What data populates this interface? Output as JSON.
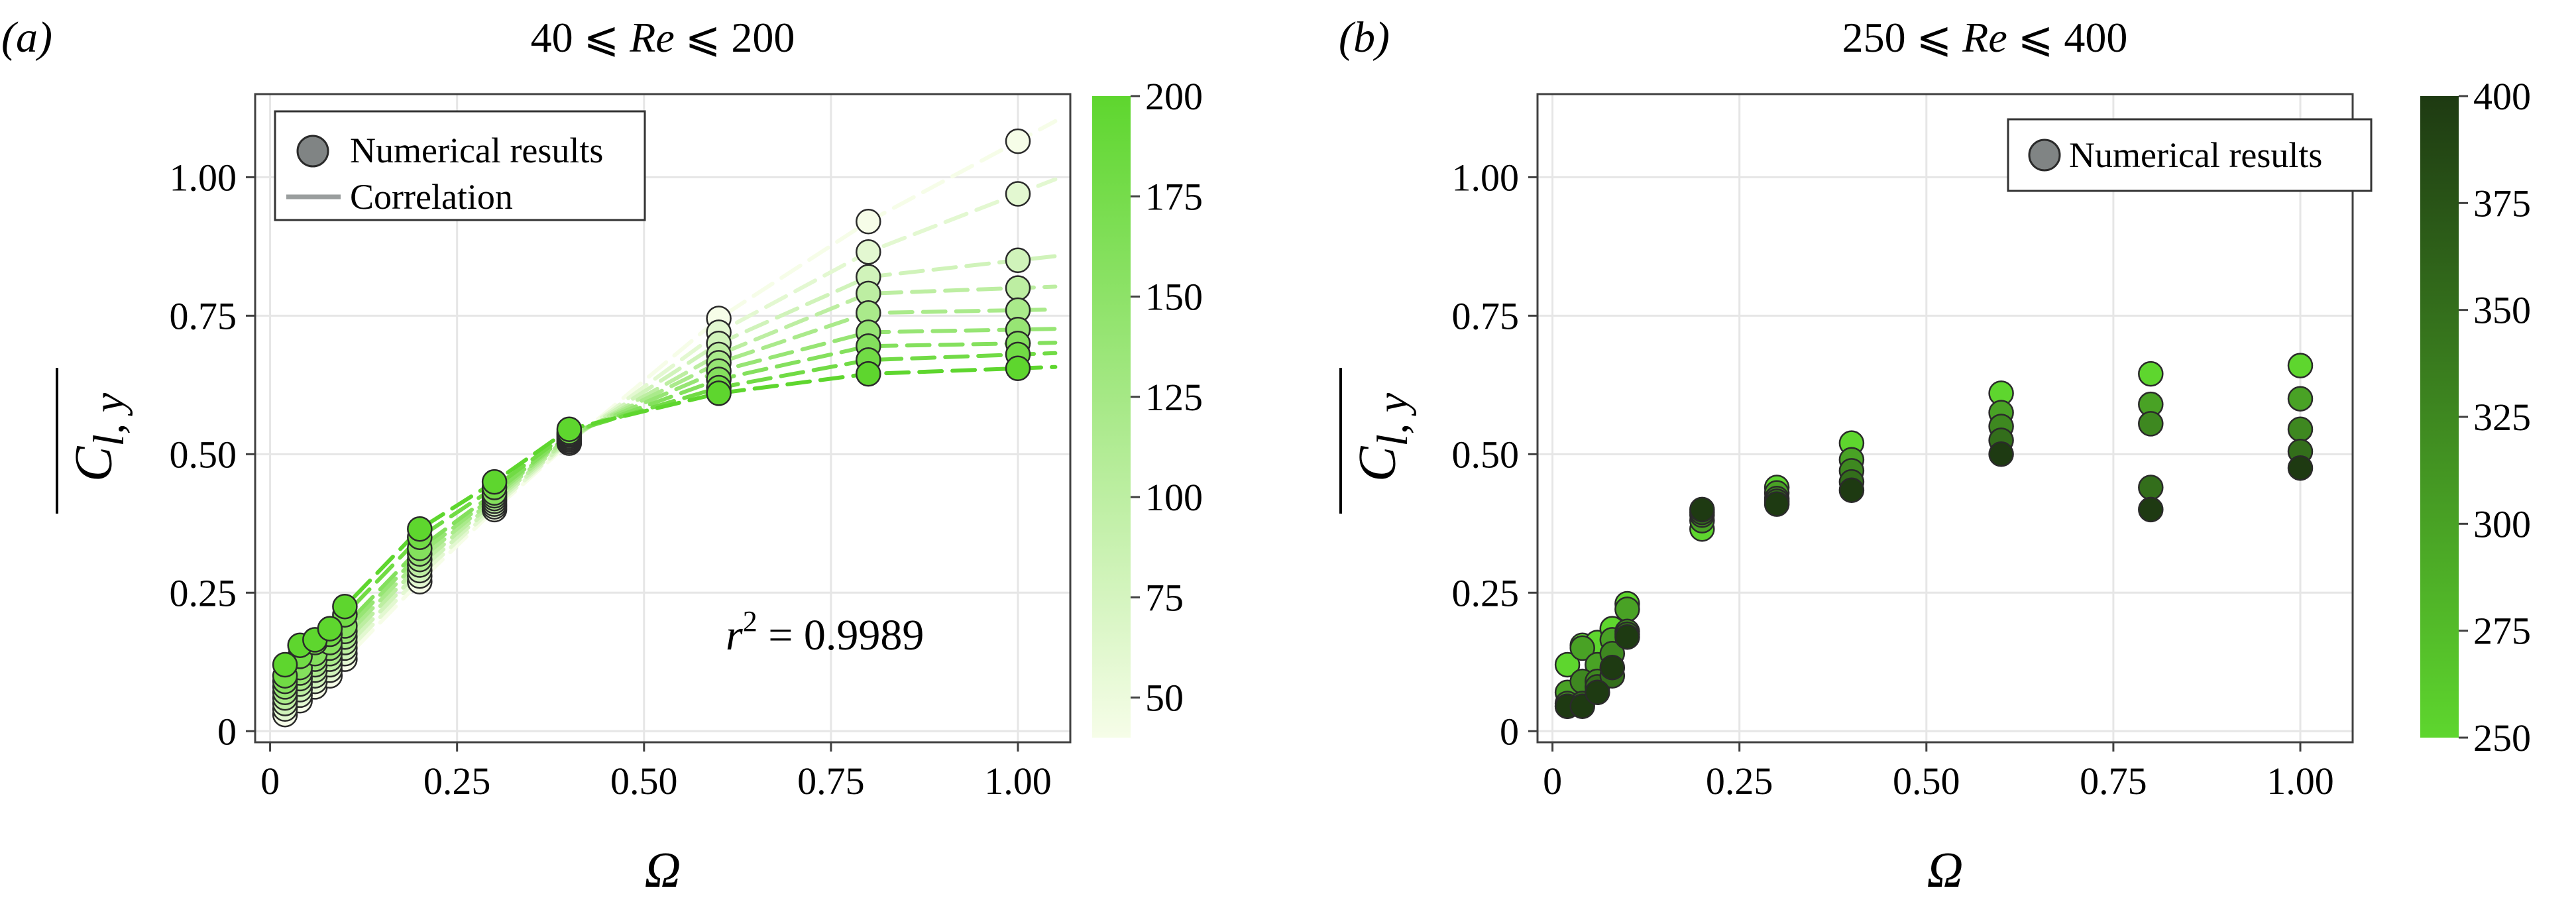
{
  "colors": {
    "axis": "#404040",
    "grid": "#e6e6e6",
    "marker_edge": "#2a2a2a",
    "legend_marker": "#808484",
    "legend_line": "#9a9e9e",
    "panel_a_min": "#f6fde8",
    "panel_a_max": "#5ed62e",
    "panel_b_min": "#5ed62e",
    "panel_b_max": "#1e3a12"
  },
  "chart_data": [
    {
      "type": "scatter",
      "panel_label": "(a)",
      "title_pre": "40 ⩽ ",
      "title_var": "Re",
      "title_post": " ⩽ 200",
      "xlabel": "Ω",
      "ylabel_main": "C",
      "ylabel_sub": "l, y",
      "xlim": [
        -0.02,
        1.07
      ],
      "ylim": [
        -0.02,
        1.15
      ],
      "xticks": [
        0,
        0.25,
        0.5,
        0.75,
        1.0
      ],
      "xticklabels": [
        "0",
        "0.25",
        "0.50",
        "0.75",
        "1.00"
      ],
      "yticks": [
        0,
        0.25,
        0.5,
        0.75,
        1.0
      ],
      "yticklabels": [
        "0",
        "0.25",
        "0.50",
        "0.75",
        "1.00"
      ],
      "grid": true,
      "legend_position": "top-left",
      "legend": [
        {
          "label": "Numerical results",
          "kind": "marker"
        },
        {
          "label": "Correlation",
          "kind": "line"
        }
      ],
      "annotation": {
        "pre": "r",
        "sup": "2",
        "post": " = 0.9989"
      },
      "colorbar": {
        "range": [
          40,
          200
        ],
        "ticks": [
          50,
          75,
          100,
          125,
          150,
          175,
          200
        ],
        "ticklabels": [
          "50",
          "75",
          "100",
          "125",
          "150",
          "175",
          "200"
        ]
      },
      "color_variable": "Re",
      "series": [
        {
          "re": 40,
          "x": [
            0.02,
            0.04,
            0.06,
            0.08,
            0.1,
            0.2,
            0.3,
            0.4,
            0.6,
            0.8,
            1.0
          ],
          "y": [
            0.03,
            0.055,
            0.08,
            0.1,
            0.13,
            0.27,
            0.4,
            0.52,
            0.745,
            0.92,
            1.065
          ]
        },
        {
          "re": 60,
          "x": [
            0.02,
            0.04,
            0.06,
            0.08,
            0.1,
            0.2,
            0.3,
            0.4,
            0.6,
            0.8,
            1.0
          ],
          "y": [
            0.04,
            0.065,
            0.09,
            0.11,
            0.14,
            0.28,
            0.405,
            0.523,
            0.72,
            0.865,
            0.97
          ]
        },
        {
          "re": 80,
          "x": [
            0.02,
            0.04,
            0.06,
            0.08,
            0.1,
            0.2,
            0.3,
            0.4,
            0.6,
            0.8,
            1.0
          ],
          "y": [
            0.05,
            0.075,
            0.1,
            0.12,
            0.15,
            0.29,
            0.41,
            0.526,
            0.7,
            0.82,
            0.85
          ]
        },
        {
          "re": 100,
          "x": [
            0.02,
            0.04,
            0.06,
            0.08,
            0.1,
            0.2,
            0.3,
            0.4,
            0.6,
            0.8,
            1.0
          ],
          "y": [
            0.06,
            0.085,
            0.11,
            0.13,
            0.16,
            0.3,
            0.415,
            0.529,
            0.68,
            0.79,
            0.8
          ]
        },
        {
          "re": 120,
          "x": [
            0.02,
            0.04,
            0.06,
            0.08,
            0.1,
            0.2,
            0.3,
            0.4,
            0.6,
            0.8,
            1.0
          ],
          "y": [
            0.07,
            0.095,
            0.12,
            0.14,
            0.17,
            0.31,
            0.42,
            0.532,
            0.665,
            0.755,
            0.76
          ]
        },
        {
          "re": 140,
          "x": [
            0.02,
            0.04,
            0.06,
            0.08,
            0.1,
            0.2,
            0.3,
            0.4,
            0.6,
            0.8,
            1.0
          ],
          "y": [
            0.08,
            0.105,
            0.13,
            0.15,
            0.18,
            0.32,
            0.425,
            0.535,
            0.65,
            0.72,
            0.725
          ]
        },
        {
          "re": 160,
          "x": [
            0.02,
            0.04,
            0.06,
            0.08,
            0.1,
            0.2,
            0.3,
            0.4,
            0.6,
            0.8,
            1.0
          ],
          "y": [
            0.09,
            0.115,
            0.14,
            0.16,
            0.19,
            0.33,
            0.43,
            0.537,
            0.635,
            0.695,
            0.7
          ]
        },
        {
          "re": 180,
          "x": [
            0.02,
            0.04,
            0.06,
            0.08,
            0.1,
            0.2,
            0.3,
            0.4,
            0.6,
            0.8,
            1.0
          ],
          "y": [
            0.1,
            0.135,
            0.16,
            0.175,
            0.21,
            0.35,
            0.44,
            0.54,
            0.62,
            0.67,
            0.68
          ]
        },
        {
          "re": 200,
          "x": [
            0.02,
            0.04,
            0.06,
            0.08,
            0.1,
            0.2,
            0.3,
            0.4,
            0.6,
            0.8,
            1.0
          ],
          "y": [
            0.12,
            0.155,
            0.165,
            0.185,
            0.225,
            0.365,
            0.45,
            0.545,
            0.61,
            0.645,
            0.655
          ]
        }
      ]
    },
    {
      "type": "scatter",
      "panel_label": "(b)",
      "title_pre": "250 ⩽ ",
      "title_var": "Re",
      "title_post": " ⩽ 400",
      "xlabel": "Ω",
      "ylabel_main": "C",
      "ylabel_sub": "l, y",
      "xlim": [
        -0.02,
        1.07
      ],
      "ylim": [
        -0.02,
        1.15
      ],
      "xticks": [
        0,
        0.25,
        0.5,
        0.75,
        1.0
      ],
      "xticklabels": [
        "0",
        "0.25",
        "0.50",
        "0.75",
        "1.00"
      ],
      "yticks": [
        0,
        0.25,
        0.5,
        0.75,
        1.0
      ],
      "yticklabels": [
        "0",
        "0.25",
        "0.50",
        "0.75",
        "1.00"
      ],
      "grid": true,
      "legend_position": "top-right",
      "legend": [
        {
          "label": "Numerical results",
          "kind": "marker"
        }
      ],
      "colorbar": {
        "range": [
          250,
          400
        ],
        "ticks": [
          250,
          275,
          300,
          325,
          350,
          375,
          400
        ],
        "ticklabels": [
          "250",
          "275",
          "300",
          "325",
          "350",
          "375",
          "400"
        ]
      },
      "color_variable": "Re",
      "series": [
        {
          "re": 250,
          "x": [
            0.02,
            0.04,
            0.06,
            0.08,
            0.1,
            0.2,
            0.3,
            0.4,
            0.6,
            0.8,
            1.0
          ],
          "y": [
            0.12,
            0.155,
            0.16,
            0.185,
            0.23,
            0.365,
            0.44,
            0.52,
            0.61,
            0.645,
            0.66
          ]
        },
        {
          "re": 300,
          "x": [
            0.02,
            0.04,
            0.06,
            0.08,
            0.1,
            0.2,
            0.3,
            0.4,
            0.6,
            0.8,
            1.0
          ],
          "y": [
            0.07,
            0.15,
            0.12,
            0.165,
            0.22,
            0.38,
            0.43,
            0.49,
            0.575,
            0.59,
            0.6
          ]
        },
        {
          "re": 325,
          "x": [
            0.02,
            0.04,
            0.06,
            0.08,
            0.1,
            0.2,
            0.3,
            0.4,
            0.6,
            0.8,
            1.0
          ],
          "y": [
            0.05,
            0.09,
            0.09,
            0.14,
            0.18,
            0.39,
            0.42,
            0.47,
            0.55,
            0.555,
            0.545
          ]
        },
        {
          "re": 350,
          "x": [
            0.02,
            0.04,
            0.06,
            0.08,
            0.1,
            0.2,
            0.3,
            0.4,
            0.6,
            0.8,
            1.0
          ],
          "y": [
            0.045,
            0.05,
            0.08,
            0.1,
            0.175,
            0.395,
            0.415,
            0.45,
            0.525,
            0.44,
            0.505
          ]
        },
        {
          "re": 400,
          "x": [
            0.02,
            0.04,
            0.06,
            0.08,
            0.1,
            0.2,
            0.3,
            0.4,
            0.6,
            0.8,
            1.0
          ],
          "y": [
            0.045,
            0.045,
            0.07,
            0.115,
            0.17,
            0.4,
            0.41,
            0.435,
            0.5,
            0.4,
            0.475
          ]
        }
      ]
    }
  ]
}
